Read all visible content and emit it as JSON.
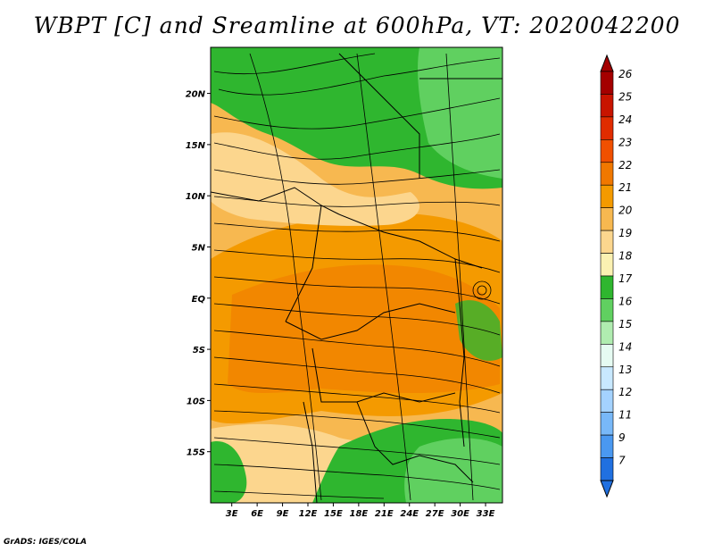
{
  "title": "WBPT [C] and Sreamline at 600hPa, VT: 2020042200",
  "credit": "GrADS: IGES/COLA",
  "lat_labels": [
    {
      "text": "20N",
      "lat": 20
    },
    {
      "text": "15N",
      "lat": 15
    },
    {
      "text": "10N",
      "lat": 10
    },
    {
      "text": "5N",
      "lat": 5
    },
    {
      "text": "EQ",
      "lat": 0
    },
    {
      "text": "5S",
      "lat": -5
    },
    {
      "text": "10S",
      "lat": -10
    },
    {
      "text": "15S",
      "lat": -15
    }
  ],
  "lon_labels": [
    {
      "text": "3E",
      "lon": 3
    },
    {
      "text": "6E",
      "lon": 6
    },
    {
      "text": "9E",
      "lon": 9
    },
    {
      "text": "12E",
      "lon": 12
    },
    {
      "text": "15E",
      "lon": 15
    },
    {
      "text": "18E",
      "lon": 18
    },
    {
      "text": "21E",
      "lon": 21
    },
    {
      "text": "24E",
      "lon": 24
    },
    {
      "text": "27E",
      "lon": 27
    },
    {
      "text": "30E",
      "lon": 30
    },
    {
      "text": "33E",
      "lon": 33
    }
  ],
  "map_extent": {
    "lon_min": 0.5,
    "lon_max": 35,
    "lat_min": -20,
    "lat_max": 24.5
  },
  "colorbar": {
    "levels": [
      "26",
      "25",
      "24",
      "23",
      "22",
      "21",
      "20",
      "19",
      "18",
      "17",
      "16",
      "15",
      "14",
      "13",
      "12",
      "11",
      "9",
      "7"
    ],
    "colors": [
      "#a40000",
      "#c81400",
      "#e02c00",
      "#f05000",
      "#f07800",
      "#f49a00",
      "#f7b850",
      "#fcd68e",
      "#fbf1b2",
      "#2fb62f",
      "#60d060",
      "#b0ecb0",
      "#e6fbf2",
      "#c8e8ff",
      "#a4d2ff",
      "#78b8f8",
      "#4a98f0",
      "#2070e0"
    ]
  }
}
